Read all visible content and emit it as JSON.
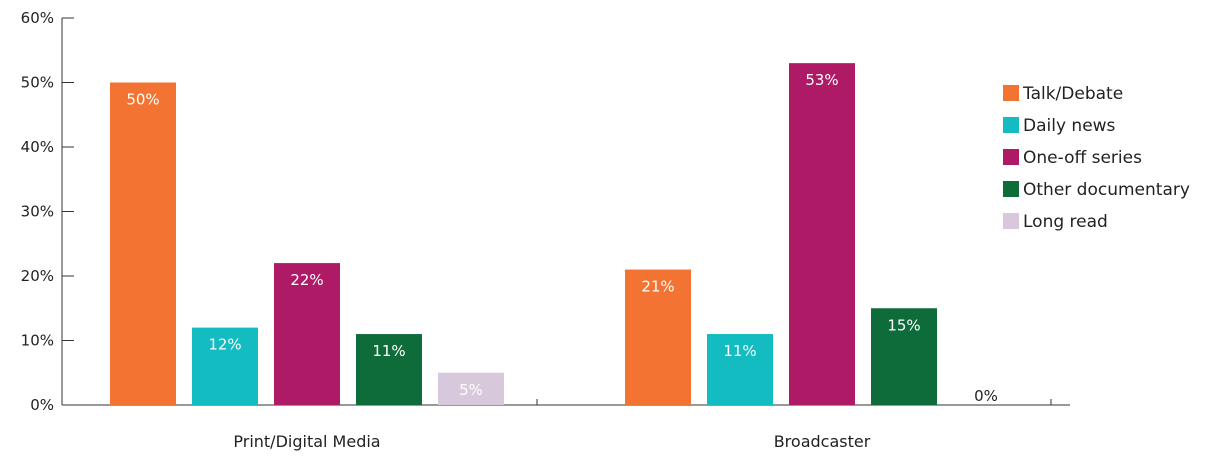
{
  "chart_data": {
    "type": "bar",
    "title": "",
    "xlabel": "",
    "ylabel": "",
    "categories": [
      "Print/Digital Media",
      "Broadcaster"
    ],
    "ylim": [
      0,
      60
    ],
    "yticks": [
      0,
      10,
      20,
      30,
      40,
      50,
      60
    ],
    "ytick_labels": [
      "0%",
      "10%",
      "20%",
      "30%",
      "40%",
      "50%",
      "60%"
    ],
    "grid": false,
    "legend_position": "right",
    "series": [
      {
        "name": "Talk/Debate",
        "color": "#F37432",
        "label_color": "#ffffff",
        "values": [
          50,
          21
        ],
        "labels": [
          "50%",
          "21%"
        ]
      },
      {
        "name": "Daily news",
        "color": "#12BCC1",
        "label_color": "#ffffff",
        "values": [
          12,
          11
        ],
        "labels": [
          "12%",
          "11%"
        ]
      },
      {
        "name": "One-off series",
        "color": "#AE1A66",
        "label_color": "#ffffff",
        "values": [
          22,
          53
        ],
        "labels": [
          "22%",
          "53%"
        ]
      },
      {
        "name": "Other documentary",
        "color": "#0E6B3A",
        "label_color": "#ffffff",
        "values": [
          11,
          15
        ],
        "labels": [
          "11%",
          "15%"
        ]
      },
      {
        "name": "Long read",
        "color": "#D8C8DC",
        "label_color": "#ffffff",
        "values": [
          5,
          0
        ],
        "labels": [
          "5%",
          "0%"
        ]
      }
    ]
  }
}
